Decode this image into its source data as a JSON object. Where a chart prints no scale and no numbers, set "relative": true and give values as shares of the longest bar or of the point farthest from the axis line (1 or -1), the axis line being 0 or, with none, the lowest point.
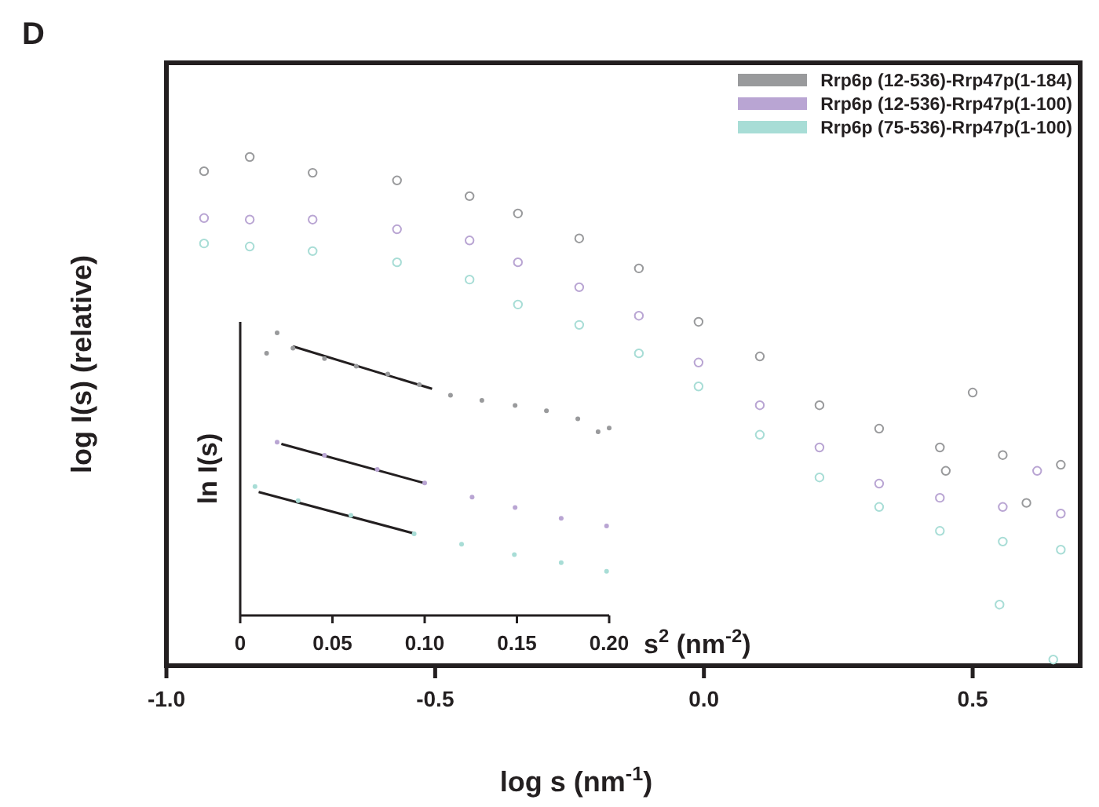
{
  "chart_data": [
    {
      "type": "scatter",
      "title": "D",
      "xlabel": "log s (nm$^{-1}$)",
      "ylabel": "log I(s) (relative)",
      "relative": true,
      "xlim": [
        -1.0,
        0.7
      ],
      "xticks": [
        {
          "value": -1,
          "label": "-1.0"
        },
        -0.5,
        {
          "value": 0,
          "label": "0.0"
        },
        0.5
      ],
      "legend": "top right",
      "marker": "circle",
      "series": [
        {
          "name": "Rrp6p (12-536)-Rrp47p(1-184)",
          "color": "#999a9c",
          "x": [
            -0.93,
            -0.845,
            -0.728,
            -0.571,
            -0.436,
            -0.346,
            -0.232,
            -0.121,
            -0.01,
            0.104,
            0.215,
            0.326,
            0.439,
            0.556,
            0.664,
            0.45,
            0.5,
            0.6
          ],
          "values": [
            0.972,
            1.0,
            0.969,
            0.954,
            0.923,
            0.889,
            0.84,
            0.781,
            0.676,
            0.608,
            0.512,
            0.466,
            0.429,
            0.414,
            0.395,
            0.383,
            0.537,
            0.32
          ]
        },
        {
          "name": "Rrp6p (12-536)-Rrp47p(1-100)",
          "color": "#b9a5d3",
          "x": [
            -0.93,
            -0.845,
            -0.728,
            -0.571,
            -0.436,
            -0.346,
            -0.232,
            -0.121,
            -0.01,
            0.104,
            0.215,
            0.326,
            0.439,
            0.556,
            0.664,
            0.62
          ],
          "values": [
            0.88,
            0.877,
            0.877,
            0.858,
            0.836,
            0.793,
            0.744,
            0.688,
            0.596,
            0.512,
            0.429,
            0.358,
            0.33,
            0.312,
            0.299,
            0.383
          ]
        },
        {
          "name": "Rrp6p (75-536)-Rrp47p(1-100)",
          "color": "#a8ddd6",
          "x": [
            -0.93,
            -0.845,
            -0.728,
            -0.571,
            -0.436,
            -0.346,
            -0.232,
            -0.121,
            -0.01,
            0.104,
            0.215,
            0.326,
            0.439,
            0.556,
            0.664,
            0.55,
            0.65
          ],
          "values": [
            0.83,
            0.824,
            0.815,
            0.793,
            0.759,
            0.71,
            0.67,
            0.614,
            0.549,
            0.454,
            0.37,
            0.312,
            0.265,
            0.244,
            0.228,
            0.12,
            0.012
          ]
        }
      ]
    },
    {
      "type": "scatter",
      "xlabel": "s$^{2}$ (nm$^{-2}$)",
      "ylabel": "ln I(s)",
      "relative": true,
      "xlim": [
        0,
        0.2
      ],
      "xticks": [
        0,
        0.05,
        {
          "value": 0.1,
          "label": "0.10"
        },
        0.15,
        {
          "value": 0.2,
          "label": "0.20"
        }
      ],
      "marker": "circle",
      "series": [
        {
          "color": "#999a9c",
          "x": [
            0.0143,
            0.02,
            0.0286,
            0.0457,
            0.0629,
            0.08,
            0.0971,
            0.114,
            0.131,
            0.149,
            0.166,
            0.183,
            0.194,
            0.2
          ],
          "values": [
            0.928,
            1.0,
            0.946,
            0.909,
            0.882,
            0.854,
            0.817,
            0.779,
            0.761,
            0.743,
            0.724,
            0.696,
            0.65,
            0.663
          ]
        },
        {
          "color": "#b9a5d3",
          "x": [
            0.02,
            0.0457,
            0.0743,
            0.1,
            0.1257,
            0.149,
            0.174,
            0.1986
          ],
          "values": [
            0.613,
            0.567,
            0.517,
            0.469,
            0.419,
            0.382,
            0.344,
            0.317
          ]
        },
        {
          "color": "#a8ddd6",
          "x": [
            0.008,
            0.0314,
            0.06,
            0.0943,
            0.12,
            0.1486,
            0.174,
            0.1986
          ],
          "values": [
            0.456,
            0.406,
            0.354,
            0.289,
            0.252,
            0.215,
            0.187,
            0.156
          ]
        },
        {
          "type": "line",
          "color": "#231f20",
          "line_style": "solid",
          "marker": "none",
          "x": [
            0.0286,
            0.104
          ],
          "values": [
            0.952,
            0.802
          ]
        },
        {
          "type": "line",
          "color": "#231f20",
          "line_style": "solid",
          "marker": "none",
          "x": [
            0.0223,
            0.1006
          ],
          "values": [
            0.607,
            0.467
          ]
        },
        {
          "type": "line",
          "color": "#231f20",
          "line_style": "solid",
          "marker": "none",
          "x": [
            0.01,
            0.0949
          ],
          "values": [
            0.437,
            0.289
          ]
        }
      ]
    }
  ]
}
